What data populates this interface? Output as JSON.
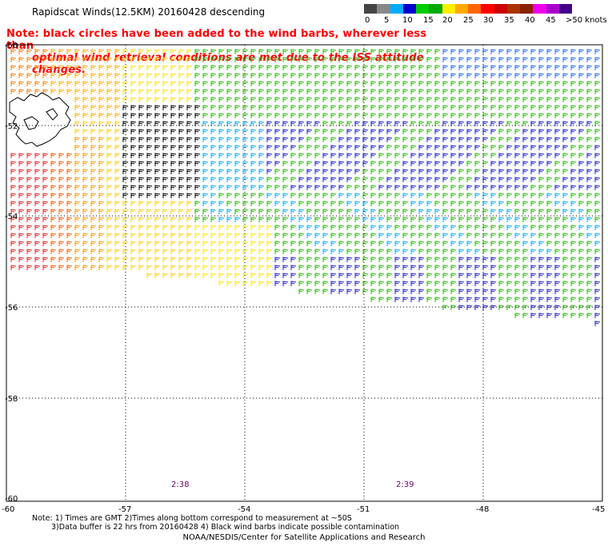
{
  "title": "Rapidscat Winds(12.5KM) 20160428 descending",
  "note": {
    "line1": "Note: black circles have been added to the wind barbs, wherever less than",
    "line2": "optimal wind retrieval conditions are met due to the ISS attitude changes."
  },
  "colorbar": {
    "colors": [
      "#444444",
      "#888888",
      "#00aaff",
      "#0000cc",
      "#00cc00",
      "#00aa00",
      "#ffee00",
      "#ffaa00",
      "#ff6600",
      "#ff0000",
      "#cc0000",
      "#aa3300",
      "#882200",
      "#ee00ee",
      "#aa00cc",
      "#440088"
    ],
    "labels": [
      "0",
      "5",
      "10",
      "15",
      "20",
      "25",
      "30",
      "35",
      "40",
      "45",
      ">50 knots"
    ]
  },
  "map": {
    "lat_labels": [
      "-50",
      "-52",
      "-54",
      "-56",
      "-58",
      "-60"
    ],
    "lon_labels": [
      "-60",
      "-57",
      "-54",
      "-51",
      "-48",
      "-45"
    ],
    "time_labels": [
      "2:38",
      "2:39"
    ]
  },
  "footnote": {
    "line1": "Note: 1) Times are GMT 2)Times along bottom correspond to measurement at ~50S",
    "line2": "3)Data buffer is 22 hrs from 20160428 4) Black wind barbs indicate possible contamination"
  },
  "credit": "NOAA/NESDIS/Center for Satellite Applications and Research"
}
